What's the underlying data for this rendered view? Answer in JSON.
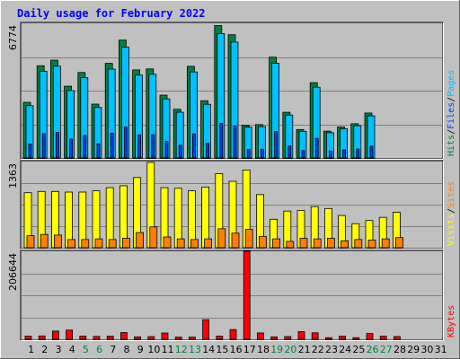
{
  "chart_data": {
    "type": "bar",
    "title": "Daily usage for February 2022",
    "days": [
      "1",
      "2",
      "3",
      "4",
      "5",
      "6",
      "7",
      "8",
      "9",
      "10",
      "11",
      "12",
      "13",
      "14",
      "15",
      "16",
      "17",
      "18",
      "19",
      "20",
      "21",
      "22",
      "23",
      "24",
      "25",
      "26",
      "27",
      "28",
      "29",
      "30",
      "31"
    ],
    "weekend_days": [
      "5",
      "6",
      "12",
      "13",
      "19",
      "20",
      "26",
      "27"
    ],
    "colors": {
      "background": "#c0c0c0",
      "title": "#0000ff",
      "hits": "#008040",
      "files": "#00c0ff",
      "pages": "#0040ff",
      "visits": "#ffff00",
      "sites": "#ff8000",
      "kbf": "#ff0000",
      "weekday_label": "#000000",
      "weekend_label": "#008040"
    },
    "panels": [
      {
        "name": "hits-files-pages",
        "ymax_label": "6774",
        "ymax": 6774,
        "legend": [
          {
            "text": "Hits",
            "color": "#008040"
          },
          {
            "text": "/",
            "color": "#000000"
          },
          {
            "text": "Files",
            "color": "#0040ff"
          },
          {
            "text": "/",
            "color": "#000000"
          },
          {
            "text": "Pages",
            "color": "#00c0ff"
          }
        ],
        "series": [
          {
            "key": "hits",
            "values": [
              2800,
              4640,
              4920,
              3610,
              4300,
              2710,
              4760,
              5930,
              4430,
              4480,
              3160,
              2450,
              4610,
              2880,
              6660,
              6200,
              1650,
              1680,
              5070,
              2300,
              1430,
              3790,
              1350,
              1560,
              1720,
              2260,
              0,
              0,
              0,
              0,
              0
            ]
          },
          {
            "key": "files",
            "values": [
              2630,
              4360,
              4620,
              3390,
              4040,
              2540,
              4470,
              5580,
              4170,
              4210,
              2970,
              2300,
              4330,
              2700,
              6260,
              5830,
              1550,
              1580,
              4760,
              2160,
              1340,
              3560,
              1270,
              1470,
              1620,
              2120,
              0,
              0,
              0,
              0,
              0
            ]
          },
          {
            "key": "pages",
            "values": [
              700,
              1220,
              1290,
              950,
              1130,
              710,
              1250,
              1560,
              1160,
              1170,
              830,
              640,
              1210,
              750,
              1740,
              1620,
              430,
              440,
              1330,
              600,
              370,
              990,
              350,
              410,
              450,
              590,
              0,
              0,
              0,
              0,
              0
            ]
          }
        ]
      },
      {
        "name": "visits-sites",
        "ymax_label": "1363",
        "ymax": 1363,
        "legend": [
          {
            "text": "Visits",
            "color": "#ffff00"
          },
          {
            "text": "/",
            "color": "#000000"
          },
          {
            "text": "Sites",
            "color": "#ff8000"
          }
        ],
        "series": [
          {
            "key": "visits",
            "values": [
              870,
              890,
              890,
              880,
              880,
              900,
              950,
              980,
              1110,
              1350,
              950,
              940,
              900,
              960,
              1170,
              1050,
              1230,
              840,
              450,
              580,
              590,
              650,
              620,
              510,
              380,
              430,
              480,
              560,
              0,
              0,
              0
            ]
          },
          {
            "key": "sites",
            "values": [
              190,
              210,
              200,
              130,
              130,
              140,
              130,
              150,
              240,
              330,
              170,
              140,
              130,
              140,
              300,
              230,
              290,
              180,
              140,
              100,
              150,
              140,
              150,
              110,
              130,
              120,
              140,
              160,
              0,
              0,
              0
            ]
          }
        ]
      },
      {
        "name": "kbytes",
        "ymax_label": "206644",
        "ymax": 206644,
        "legend": [
          {
            "text": "KBytes",
            "color": "#ff0000"
          }
        ],
        "series": [
          {
            "key": "kbf",
            "values": [
              7300,
              7800,
              19300,
              21500,
              7300,
              6700,
              7300,
              15800,
              5600,
              6200,
              14700,
              5000,
              5000,
              46000,
              7200,
              22800,
              206644,
              14900,
              5700,
              6300,
              17800,
              15200,
              3800,
              7200,
              3700,
              13500,
              7200,
              6400,
              0,
              0,
              0
            ]
          }
        ]
      }
    ]
  }
}
